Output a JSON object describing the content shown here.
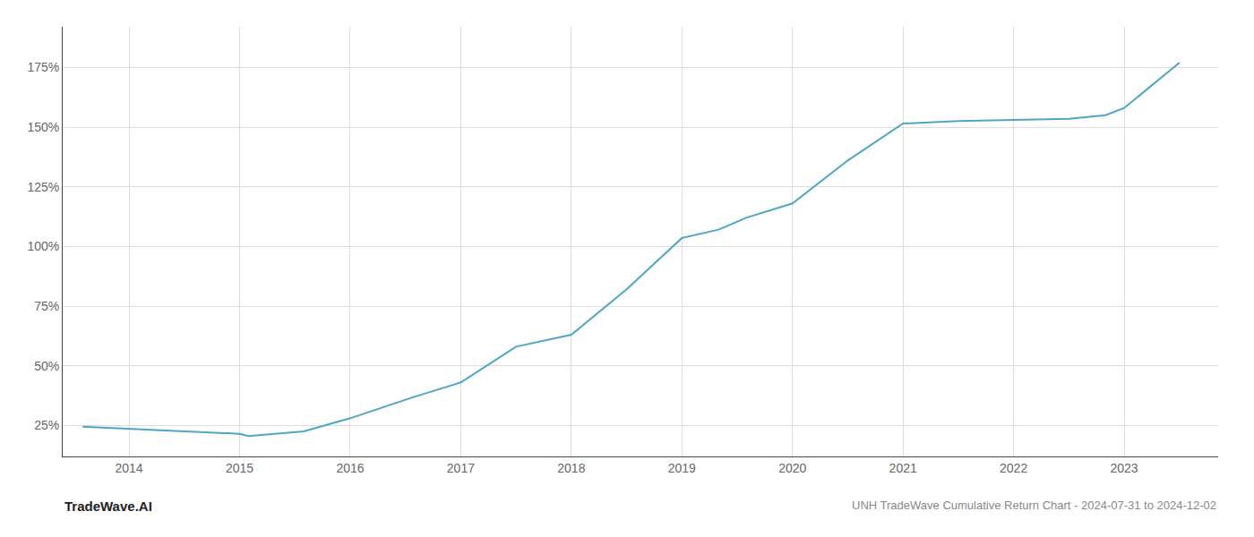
{
  "chart_data": {
    "type": "line",
    "title": "UNH TradeWave Cumulative Return Chart - 2024-07-31 to 2024-12-02",
    "annotations": [
      {
        "text": "TradeWave.AI"
      }
    ],
    "x": [
      2013.58,
      2014.08,
      2014.58,
      2015.0,
      2015.08,
      2015.58,
      2016.0,
      2016.58,
      2017.0,
      2017.5,
      2018.0,
      2018.5,
      2019.0,
      2019.33,
      2019.58,
      2020.0,
      2020.5,
      2021.0,
      2021.5,
      2022.0,
      2022.5,
      2022.83,
      2023.0,
      2023.5
    ],
    "values": [
      24.5,
      23.5,
      22.5,
      21.5,
      20.5,
      22.5,
      28.0,
      37.0,
      43.0,
      58.0,
      63.0,
      82.0,
      103.5,
      107.0,
      112.0,
      118.0,
      136.0,
      151.5,
      152.5,
      153.0,
      153.5,
      155.0,
      158.0,
      177.0
    ],
    "color": "#4da6c8",
    "xlim": [
      2013.4,
      2023.85
    ],
    "xticks": [
      2014,
      2015,
      2016,
      2017,
      2018,
      2019,
      2020,
      2021,
      2022,
      2023
    ],
    "ylim": [
      12,
      192
    ],
    "yticks": [
      {
        "value": 25,
        "label": "25%"
      },
      {
        "value": 50,
        "label": "50%"
      },
      {
        "value": 75,
        "label": "75%"
      },
      {
        "value": 100,
        "label": "100%"
      },
      {
        "value": 125,
        "label": "125%"
      },
      {
        "value": 150,
        "label": "150%"
      },
      {
        "value": 175,
        "label": "175%"
      }
    ],
    "grid": true
  }
}
